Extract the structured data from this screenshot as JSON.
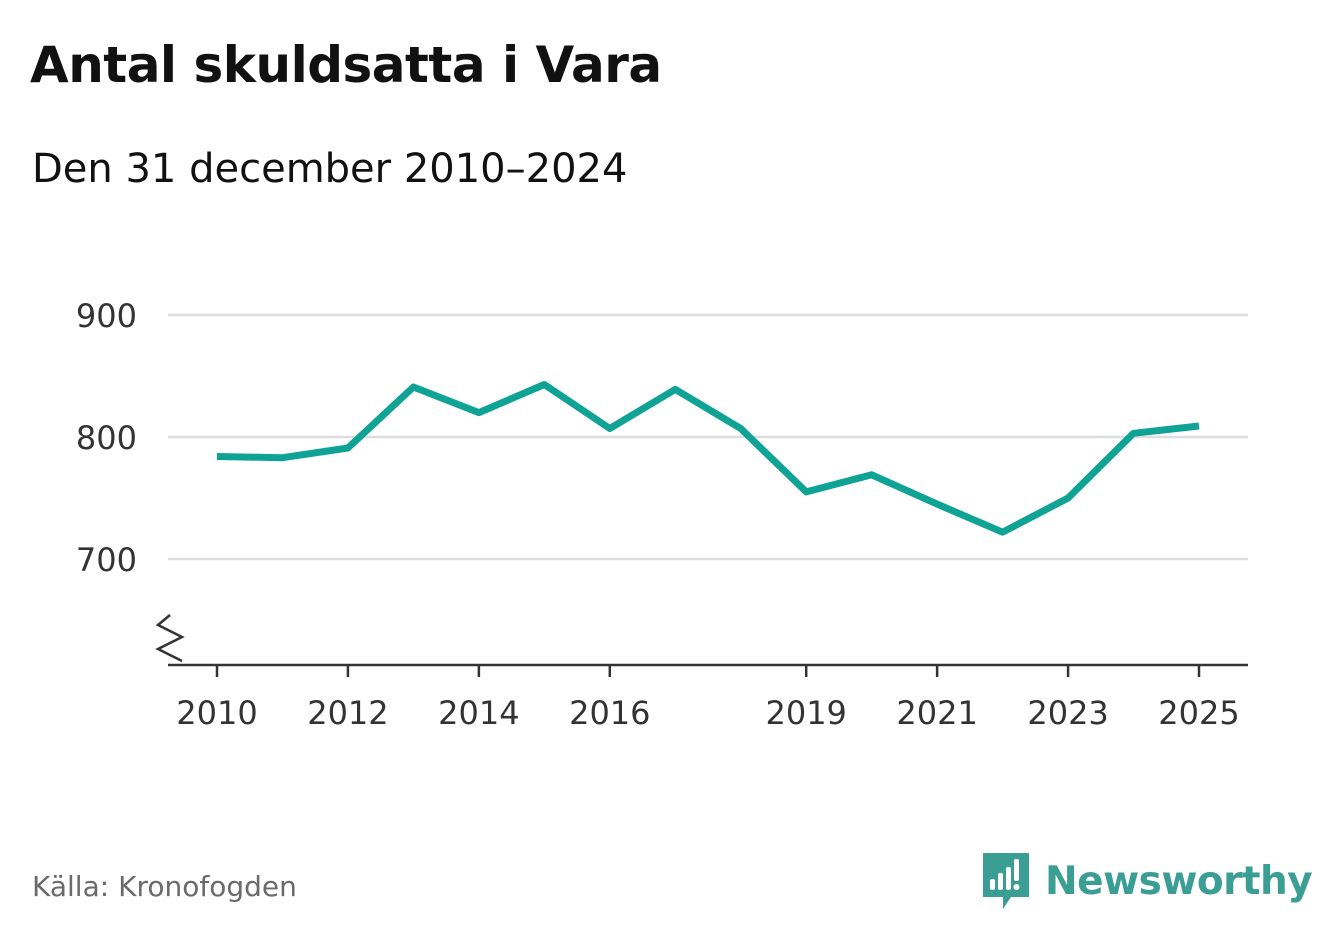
{
  "title": "Antal skuldsatta i Vara",
  "subtitle": "Den 31 december 2010–2024",
  "source": "Källa: Kronofogden",
  "brand": {
    "name": "Newsworthy",
    "icon": "newsworthy-logo-icon",
    "color": "#3a9e94"
  },
  "chart_data": {
    "type": "line",
    "title": "Antal skuldsatta i Vara",
    "subtitle": "Den 31 december 2010–2024",
    "xlabel": "",
    "ylabel": "",
    "ylim": [
      615,
      900
    ],
    "xlim": [
      2009.6,
      2025.4
    ],
    "yticks": [
      700,
      800,
      900
    ],
    "yticklabels": [
      "700",
      "800",
      "900"
    ],
    "xticks": [
      2010,
      2012,
      2014,
      2016,
      2019,
      2021,
      2023,
      2025
    ],
    "xticklabels": [
      "2010",
      "2012",
      "2014",
      "2016",
      "2019",
      "2021",
      "2023",
      "2025"
    ],
    "axis_break": true,
    "grid": true,
    "line_color": "#0fa396",
    "grid_color": "#dddddd",
    "series": [
      {
        "name": "Antal skuldsatta",
        "x": [
          2010,
          2011,
          2012,
          2013,
          2014,
          2015,
          2016,
          2017,
          2018,
          2019,
          2020,
          2021,
          2022,
          2023,
          2024,
          2025
        ],
        "values": [
          784,
          783,
          791,
          841,
          820,
          843,
          807,
          839,
          807,
          755,
          769,
          745,
          722,
          750,
          803,
          809
        ]
      }
    ]
  }
}
